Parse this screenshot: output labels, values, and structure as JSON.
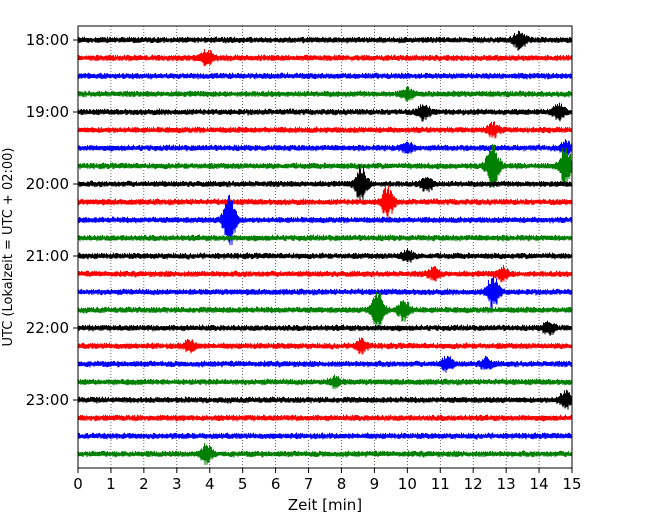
{
  "chart_data": {
    "type": "line",
    "xlabel": "Zeit  [min]",
    "ylabel": "UTC (Lokalzeit = UTC + 02:00)",
    "xlim": [
      0,
      15
    ],
    "x_ticks": [
      0,
      1,
      2,
      3,
      4,
      5,
      6,
      7,
      8,
      9,
      10,
      11,
      12,
      13,
      14,
      15
    ],
    "y_tick_labels": [
      "18:00",
      "19:00",
      "20:00",
      "21:00",
      "22:00",
      "23:00"
    ],
    "grid_x": "dotted vertical lines at every minute",
    "trace_interval_minutes": 15,
    "trace_colors": [
      "#000000",
      "#ff0000",
      "#0000ff",
      "#008000"
    ],
    "traces": [
      {
        "start": "18:00",
        "color": "#000000",
        "events": [
          {
            "t": 13.4,
            "amp": 1.0
          }
        ]
      },
      {
        "start": "18:15",
        "color": "#ff0000",
        "events": [
          {
            "t": 3.9,
            "amp": 0.9
          }
        ]
      },
      {
        "start": "18:30",
        "color": "#0000ff",
        "events": []
      },
      {
        "start": "18:45",
        "color": "#008000",
        "events": [
          {
            "t": 10.0,
            "amp": 0.6
          }
        ]
      },
      {
        "start": "19:00",
        "color": "#000000",
        "events": [
          {
            "t": 10.5,
            "amp": 0.8
          },
          {
            "t": 14.6,
            "amp": 0.8
          }
        ]
      },
      {
        "start": "19:15",
        "color": "#ff0000",
        "events": [
          {
            "t": 12.6,
            "amp": 0.7
          }
        ]
      },
      {
        "start": "19:30",
        "color": "#0000ff",
        "events": [
          {
            "t": 10.0,
            "amp": 0.6
          },
          {
            "t": 14.8,
            "amp": 0.7
          }
        ]
      },
      {
        "start": "19:45",
        "color": "#008000",
        "events": [
          {
            "t": 12.6,
            "amp": 2.6
          },
          {
            "t": 14.8,
            "amp": 2.2
          }
        ]
      },
      {
        "start": "20:00",
        "color": "#000000",
        "events": [
          {
            "t": 8.6,
            "amp": 2.0
          },
          {
            "t": 10.6,
            "amp": 0.8
          }
        ]
      },
      {
        "start": "20:15",
        "color": "#ff0000",
        "events": [
          {
            "t": 9.4,
            "amp": 1.7
          }
        ]
      },
      {
        "start": "20:30",
        "color": "#0000ff",
        "events": [
          {
            "t": 4.6,
            "amp": 3.0
          }
        ]
      },
      {
        "start": "20:45",
        "color": "#008000",
        "events": []
      },
      {
        "start": "21:00",
        "color": "#000000",
        "events": [
          {
            "t": 10.0,
            "amp": 0.6
          }
        ]
      },
      {
        "start": "21:15",
        "color": "#ff0000",
        "events": [
          {
            "t": 10.8,
            "amp": 0.6
          },
          {
            "t": 12.9,
            "amp": 0.7
          }
        ]
      },
      {
        "start": "21:30",
        "color": "#0000ff",
        "events": [
          {
            "t": 12.6,
            "amp": 1.8
          }
        ]
      },
      {
        "start": "21:45",
        "color": "#008000",
        "events": [
          {
            "t": 9.1,
            "amp": 2.2
          },
          {
            "t": 9.9,
            "amp": 1.2
          }
        ]
      },
      {
        "start": "22:00",
        "color": "#000000",
        "events": [
          {
            "t": 14.3,
            "amp": 0.7
          }
        ]
      },
      {
        "start": "22:15",
        "color": "#ff0000",
        "events": [
          {
            "t": 8.6,
            "amp": 0.7
          },
          {
            "t": 3.4,
            "amp": 0.6
          }
        ]
      },
      {
        "start": "22:30",
        "color": "#0000ff",
        "events": [
          {
            "t": 11.2,
            "amp": 0.7
          },
          {
            "t": 12.4,
            "amp": 0.6
          }
        ]
      },
      {
        "start": "22:45",
        "color": "#008000",
        "events": [
          {
            "t": 7.8,
            "amp": 0.5
          }
        ]
      },
      {
        "start": "23:00",
        "color": "#000000",
        "events": [
          {
            "t": 14.8,
            "amp": 0.9
          }
        ]
      },
      {
        "start": "23:15",
        "color": "#ff0000",
        "events": []
      },
      {
        "start": "23:30",
        "color": "#0000ff",
        "events": []
      },
      {
        "start": "23:45",
        "color": "#008000",
        "events": [
          {
            "t": 3.9,
            "amp": 1.0
          }
        ]
      }
    ]
  }
}
